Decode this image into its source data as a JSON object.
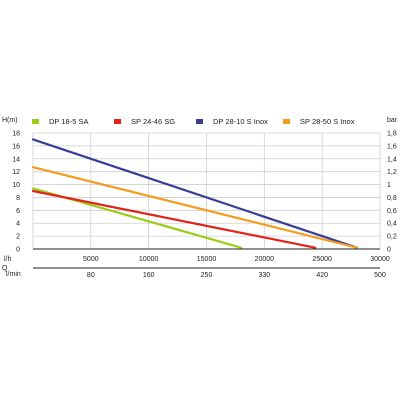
{
  "chart_data": {
    "type": "line",
    "y_left_label": "H(m)",
    "y_right_label": "bar",
    "x_label": "l/h",
    "q_label": "Q",
    "x2_label": "l/min",
    "xlim": [
      0,
      30000
    ],
    "ylim": [
      0,
      18
    ],
    "x_ticks": [
      0,
      5000,
      10000,
      15000,
      20000,
      25000,
      30000
    ],
    "x_tick_labels": [
      "0",
      "5000",
      "10000",
      "15000",
      "20000",
      "25000",
      "30000"
    ],
    "y_ticks": [
      0,
      2,
      4,
      6,
      8,
      10,
      12,
      14,
      16,
      18
    ],
    "y_tick_labels": [
      "0",
      "2",
      "4",
      "6",
      "8",
      "10",
      "12",
      "14",
      "16",
      "18"
    ],
    "y_right_tick_labels": [
      "0",
      "0,2",
      "0,4",
      "0,6",
      "0,8",
      "1",
      "1,2",
      "1,4",
      "1,6",
      "1,8"
    ],
    "x2_ticks": [
      0,
      5000,
      10000,
      15000,
      20000,
      25000,
      30000
    ],
    "x2_tick_labels": [
      "0",
      "80",
      "160",
      "250",
      "330",
      "420",
      "500"
    ],
    "grid": true,
    "legend_position": "top",
    "series": [
      {
        "name": "DP 18-5 SA",
        "color": "#9ccc1a",
        "x": [
          0,
          18000
        ],
        "y": [
          9.4,
          0.2
        ]
      },
      {
        "name": "SP 24-46 SG",
        "color": "#e2231a",
        "x": [
          0,
          24400
        ],
        "y": [
          9.0,
          0.2
        ]
      },
      {
        "name": "DP 28-10 S Inox",
        "color": "#3a3d98",
        "x": [
          0,
          28000
        ],
        "y": [
          17.0,
          0.2
        ]
      },
      {
        "name": "SP 28-50 S Inox",
        "color": "#f39c1f",
        "x": [
          0,
          28000
        ],
        "y": [
          12.7,
          0.2
        ]
      }
    ]
  }
}
